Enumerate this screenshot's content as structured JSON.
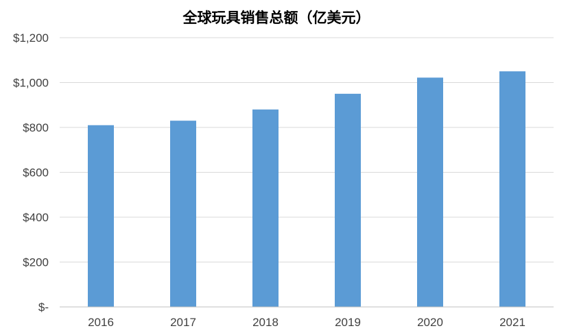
{
  "chart_data": {
    "type": "bar",
    "title": "全球玩具销售总额（亿美元）",
    "categories": [
      "2016",
      "2017",
      "2018",
      "2019",
      "2020",
      "2021"
    ],
    "values": [
      810,
      830,
      880,
      950,
      1022,
      1050
    ],
    "ylim": [
      0,
      1200
    ],
    "yticks": [
      0,
      200,
      400,
      600,
      800,
      1000,
      1200
    ],
    "ytick_labels": [
      "$-",
      "$200",
      "$400",
      "$600",
      "$800",
      "$1,000",
      "$1,200"
    ],
    "xlabel": "",
    "ylabel": "",
    "grid": true,
    "bar_color": "#5b9bd5",
    "grid_color": "#d9d9d9"
  }
}
